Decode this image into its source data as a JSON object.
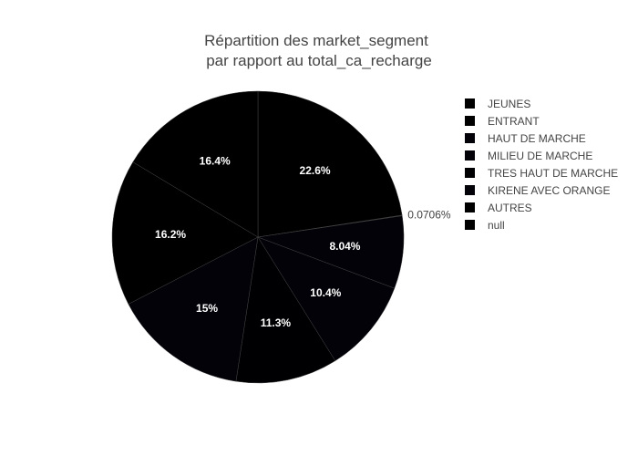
{
  "chart_data": {
    "type": "pie",
    "title_lines": [
      "Répartition des market_segment",
      "par rapport au total_ca_recharge"
    ],
    "legend_position": "right",
    "categories": [
      "JEUNES",
      "ENTRANT",
      "HAUT DE MARCHE",
      "MILIEU DE MARCHE",
      "TRES HAUT DE MARCHE",
      "KIRENE AVEC ORANGE",
      "AUTRES",
      "null"
    ],
    "values": [
      22.6,
      0.0706,
      8.04,
      10.4,
      11.3,
      15,
      16.2,
      16.4
    ],
    "slice_labels": [
      "22.6%",
      "0.0706%",
      "8.04%",
      "10.4%",
      "11.3%",
      "15%",
      "16.2%",
      "16.4%"
    ],
    "slice_colors": [
      "#000000",
      "#000000",
      "#020208",
      "#020208",
      "#000002",
      "#020208",
      "#000000",
      "#000000"
    ]
  }
}
